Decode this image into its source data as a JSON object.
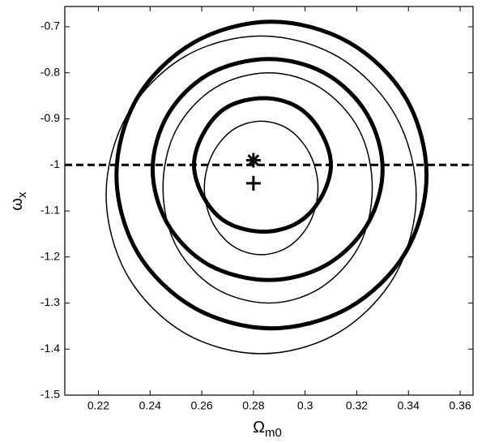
{
  "chart_data": {
    "type": "contour",
    "xlim": [
      0.207,
      0.365
    ],
    "ylim": [
      -1.5,
      -0.656
    ],
    "xticks": [
      0.22,
      0.24,
      0.26,
      0.28,
      0.3,
      0.32,
      0.34,
      0.36
    ],
    "yticks": [
      -1.5,
      -1.4,
      -1.3,
      -1.2,
      -1.1,
      -1,
      -0.9,
      -0.8,
      -0.7
    ],
    "xlabel": {
      "main": "Ω",
      "sub": "m0"
    },
    "ylabel": {
      "main": "ω",
      "sub": "x"
    },
    "series": [
      {
        "color": "#000",
        "linewidth": 5,
        "x": [
          0.347,
          0.339,
          0.317,
          0.287,
          0.257,
          0.235,
          0.227,
          0.235,
          0.257,
          0.287,
          0.317,
          0.339
        ],
        "y": [
          -1.022,
          -0.855,
          -0.734,
          -0.689,
          -0.734,
          -0.855,
          -1.022,
          -1.189,
          -1.31,
          -1.355,
          -1.31,
          -1.189
        ]
      },
      {
        "color": "#000",
        "linewidth": 5,
        "x": [
          0.33,
          0.324,
          0.308,
          0.286,
          0.263,
          0.247,
          0.241,
          0.247,
          0.263,
          0.286,
          0.308,
          0.324
        ],
        "y": [
          -1.01,
          -0.89,
          -0.802,
          -0.77,
          -0.802,
          -0.89,
          -1.01,
          -1.13,
          -1.218,
          -1.25,
          -1.218,
          -1.13
        ]
      },
      {
        "color": "#000",
        "linewidth": 5,
        "x": [
          0.31,
          0.306,
          0.297,
          0.284,
          0.27,
          0.261,
          0.257,
          0.261,
          0.27,
          0.284,
          0.297,
          0.306
        ],
        "y": [
          -1.0,
          -0.928,
          -0.874,
          -0.855,
          -0.874,
          -0.928,
          -1.0,
          -1.073,
          -1.126,
          -1.145,
          -1.126,
          -1.073
        ]
      },
      {
        "color": "#000",
        "linewidth": 1.5,
        "x": [
          0.305,
          0.302,
          0.294,
          0.283,
          0.272,
          0.264,
          0.261,
          0.264,
          0.272,
          0.283,
          0.294,
          0.302
        ],
        "y": [
          -1.05,
          -0.978,
          -0.924,
          -0.905,
          -0.924,
          -0.978,
          -1.05,
          -1.123,
          -1.176,
          -1.195,
          -1.176,
          -1.123
        ]
      },
      {
        "color": "#000",
        "linewidth": 1.5,
        "x": [
          0.326,
          0.321,
          0.306,
          0.286,
          0.265,
          0.25,
          0.245,
          0.25,
          0.265,
          0.286,
          0.306,
          0.321
        ],
        "y": [
          -1.05,
          -0.925,
          -0.833,
          -0.8,
          -0.833,
          -0.925,
          -1.05,
          -1.175,
          -1.267,
          -1.3,
          -1.267,
          -1.175
        ]
      },
      {
        "color": "#000",
        "linewidth": 1.5,
        "x": [
          0.343,
          0.335,
          0.313,
          0.283,
          0.253,
          0.231,
          0.223,
          0.231,
          0.253,
          0.283,
          0.313,
          0.335
        ],
        "y": [
          -1.065,
          -0.893,
          -0.766,
          -0.72,
          -0.766,
          -0.893,
          -1.065,
          -1.238,
          -1.364,
          -1.41,
          -1.364,
          -1.238
        ]
      }
    ],
    "markers": [
      {
        "x": 0.28,
        "y": -0.99,
        "marker": "star"
      },
      {
        "x": 0.28,
        "y": -1.04,
        "marker": "plus"
      }
    ],
    "hlines": [
      {
        "y": -1,
        "style": "dashed"
      }
    ]
  }
}
